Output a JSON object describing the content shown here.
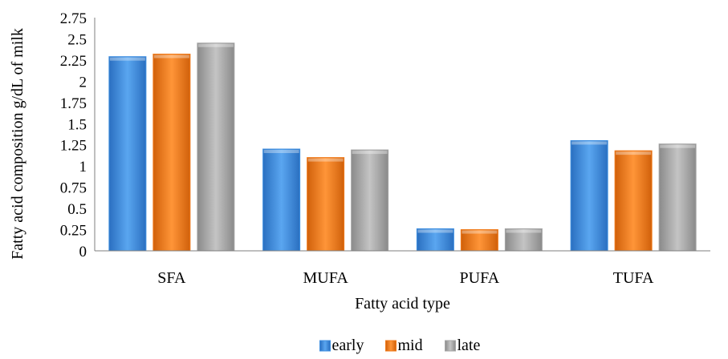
{
  "chart_data": {
    "type": "bar",
    "title": "",
    "xlabel": "Fatty acid type",
    "ylabel": "Fatty acid composition g/dL of milk",
    "categories": [
      "SFA",
      "MUFA",
      "PUFA",
      "TUFA"
    ],
    "series": [
      {
        "name": "early",
        "values": [
          2.29,
          1.2,
          0.26,
          1.3
        ],
        "color": "#3f8fe0"
      },
      {
        "name": "mid",
        "values": [
          2.32,
          1.1,
          0.25,
          1.18
        ],
        "color": "#f07a1a"
      },
      {
        "name": "late",
        "values": [
          2.45,
          1.19,
          0.26,
          1.26
        ],
        "color": "#a6a6a6"
      }
    ],
    "ylim": [
      0,
      2.75
    ],
    "yticks": [
      "0",
      "0.25",
      "0.5",
      "0.75",
      "1",
      "1.25",
      "1.5",
      "1.75",
      "2",
      "2.25",
      "2.5",
      "2.75"
    ],
    "grid": false,
    "legend_position": "bottom"
  }
}
